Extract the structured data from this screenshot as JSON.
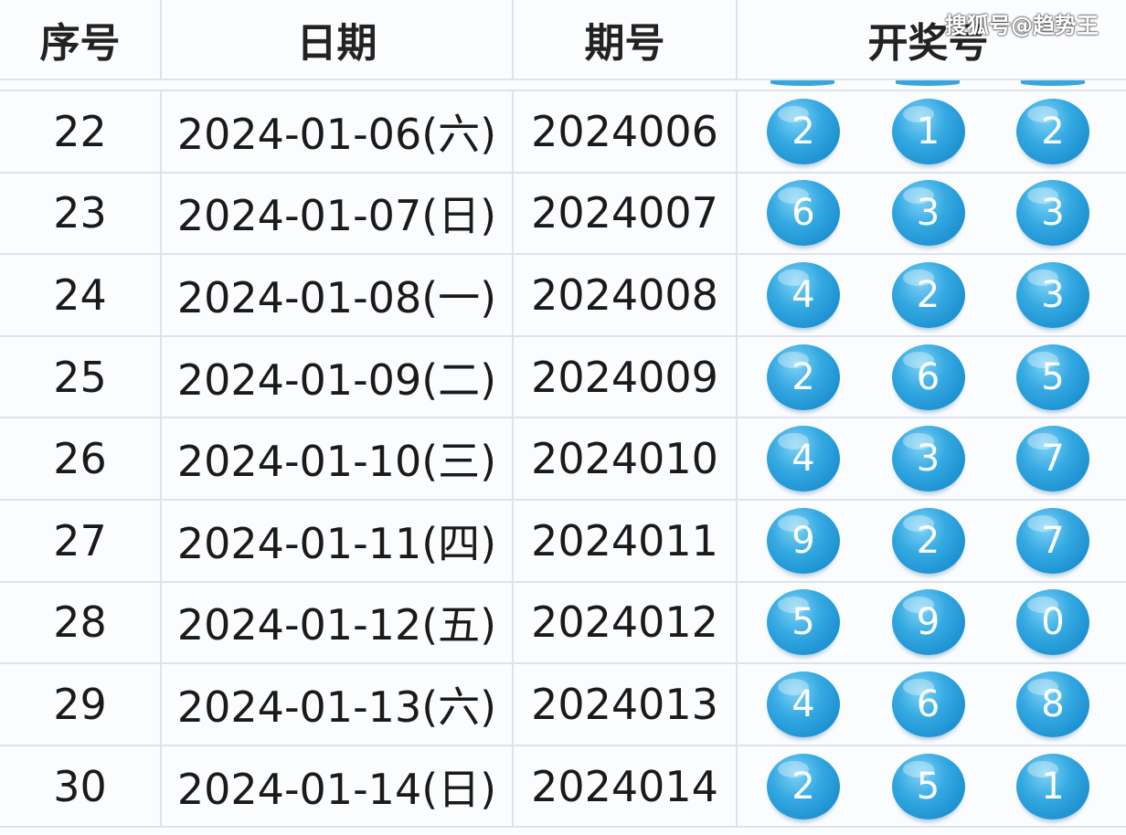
{
  "header": {
    "index": "序号",
    "date": "日期",
    "issue": "期号",
    "numbers": "开奖号"
  },
  "watermark": "搜狐号@趋势王",
  "ball_color": "#2a9fdc",
  "rows": [
    {
      "index": "22",
      "date": "2024-01-06(六)",
      "issue": "2024006",
      "numbers": [
        "2",
        "1",
        "2"
      ]
    },
    {
      "index": "23",
      "date": "2024-01-07(日)",
      "issue": "2024007",
      "numbers": [
        "6",
        "3",
        "3"
      ]
    },
    {
      "index": "24",
      "date": "2024-01-08(一)",
      "issue": "2024008",
      "numbers": [
        "4",
        "2",
        "3"
      ]
    },
    {
      "index": "25",
      "date": "2024-01-09(二)",
      "issue": "2024009",
      "numbers": [
        "2",
        "6",
        "5"
      ]
    },
    {
      "index": "26",
      "date": "2024-01-10(三)",
      "issue": "2024010",
      "numbers": [
        "4",
        "3",
        "7"
      ]
    },
    {
      "index": "27",
      "date": "2024-01-11(四)",
      "issue": "2024011",
      "numbers": [
        "9",
        "2",
        "7"
      ]
    },
    {
      "index": "28",
      "date": "2024-01-12(五)",
      "issue": "2024012",
      "numbers": [
        "5",
        "9",
        "0"
      ]
    },
    {
      "index": "29",
      "date": "2024-01-13(六)",
      "issue": "2024013",
      "numbers": [
        "4",
        "6",
        "8"
      ]
    },
    {
      "index": "30",
      "date": "2024-01-14(日)",
      "issue": "2024014",
      "numbers": [
        "2",
        "5",
        "1"
      ]
    }
  ]
}
